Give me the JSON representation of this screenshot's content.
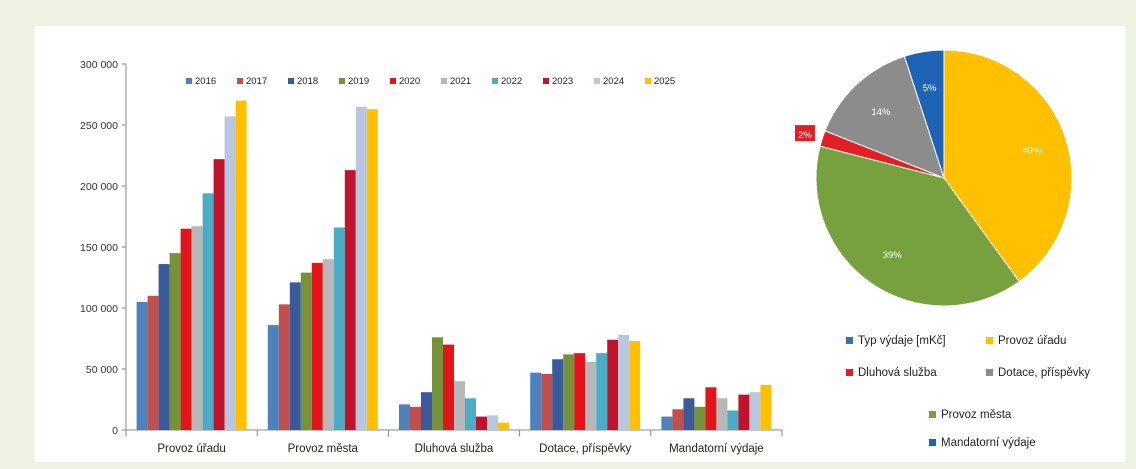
{
  "chart_data": [
    {
      "type": "bar",
      "categories": [
        "Provoz úřadu",
        "Provoz města",
        "Dluhová služba",
        "Dotace, příspěvky",
        "Mandatorní výdaje"
      ],
      "ylim": [
        0,
        300000
      ],
      "yticks": [
        {
          "value": 0,
          "label": "0"
        },
        {
          "value": 50000,
          "label": "50 000"
        },
        {
          "value": 100000,
          "label": "100 000"
        },
        {
          "value": 150000,
          "label": "150 000"
        },
        {
          "value": 200000,
          "label": "200 000"
        },
        {
          "value": 250000,
          "label": "250 000"
        },
        {
          "value": 300000,
          "label": "300 000"
        }
      ],
      "legend_position": "top",
      "grid": false,
      "series": [
        {
          "name": "2016",
          "color": "#4f81bd",
          "values": [
            105000,
            86000,
            21000,
            47000,
            11000
          ]
        },
        {
          "name": "2017",
          "color": "#c0504d",
          "values": [
            110000,
            103000,
            19000,
            46000,
            17000
          ]
        },
        {
          "name": "2018",
          "color": "#3a5a9c",
          "values": [
            136000,
            121000,
            31000,
            58000,
            26000
          ]
        },
        {
          "name": "2019",
          "color": "#76933c",
          "values": [
            145000,
            129000,
            76000,
            62000,
            19000
          ]
        },
        {
          "name": "2020",
          "color": "#e1151a",
          "values": [
            165000,
            137000,
            70000,
            63000,
            35000
          ]
        },
        {
          "name": "2021",
          "color": "#b8b8b8",
          "values": [
            167000,
            140000,
            40000,
            56000,
            26000
          ]
        },
        {
          "name": "2022",
          "color": "#4bacc6",
          "values": [
            194000,
            166000,
            26000,
            63000,
            16000
          ]
        },
        {
          "name": "2023",
          "color": "#c0142d",
          "values": [
            222000,
            213000,
            11000,
            74000,
            29000
          ]
        },
        {
          "name": "2024",
          "color": "#b8c7e0",
          "values": [
            257000,
            265000,
            12000,
            78000,
            31000
          ]
        },
        {
          "name": "2025",
          "color": "#ffc000",
          "values": [
            270000,
            263000,
            6000,
            73000,
            37000
          ]
        }
      ]
    },
    {
      "type": "pie",
      "slices": [
        {
          "name": "Provoz úřadu",
          "value": 40,
          "label": "40%",
          "color": "#ffc000"
        },
        {
          "name": "Provoz města",
          "value": 39,
          "label": "39%",
          "color": "#77a03f"
        },
        {
          "name": "Dluhová služba",
          "value": 2,
          "label": "2%",
          "color": "#e31e24"
        },
        {
          "name": "Dotace, příspěvky",
          "value": 14,
          "label": "14%",
          "color": "#8c8c8c"
        },
        {
          "name": "Mandatorní výdaje",
          "value": 5,
          "label": "5%",
          "color": "#1f64b4"
        }
      ],
      "legend": [
        {
          "label": "Typ výdaje  [mKč]",
          "color": "#3d6db5"
        },
        {
          "label": "Provoz úřadu",
          "color": "#ffc000"
        },
        {
          "label": "Dluhová služba",
          "color": "#e31e24"
        },
        {
          "label": "Dotace, příspěvky",
          "color": "#8c8c8c"
        },
        {
          "label": "Provoz města",
          "color": "#77a03f"
        },
        {
          "label": "Mandatorní výdaje",
          "color": "#1f64b4"
        }
      ],
      "legend_position": "bottom"
    }
  ]
}
